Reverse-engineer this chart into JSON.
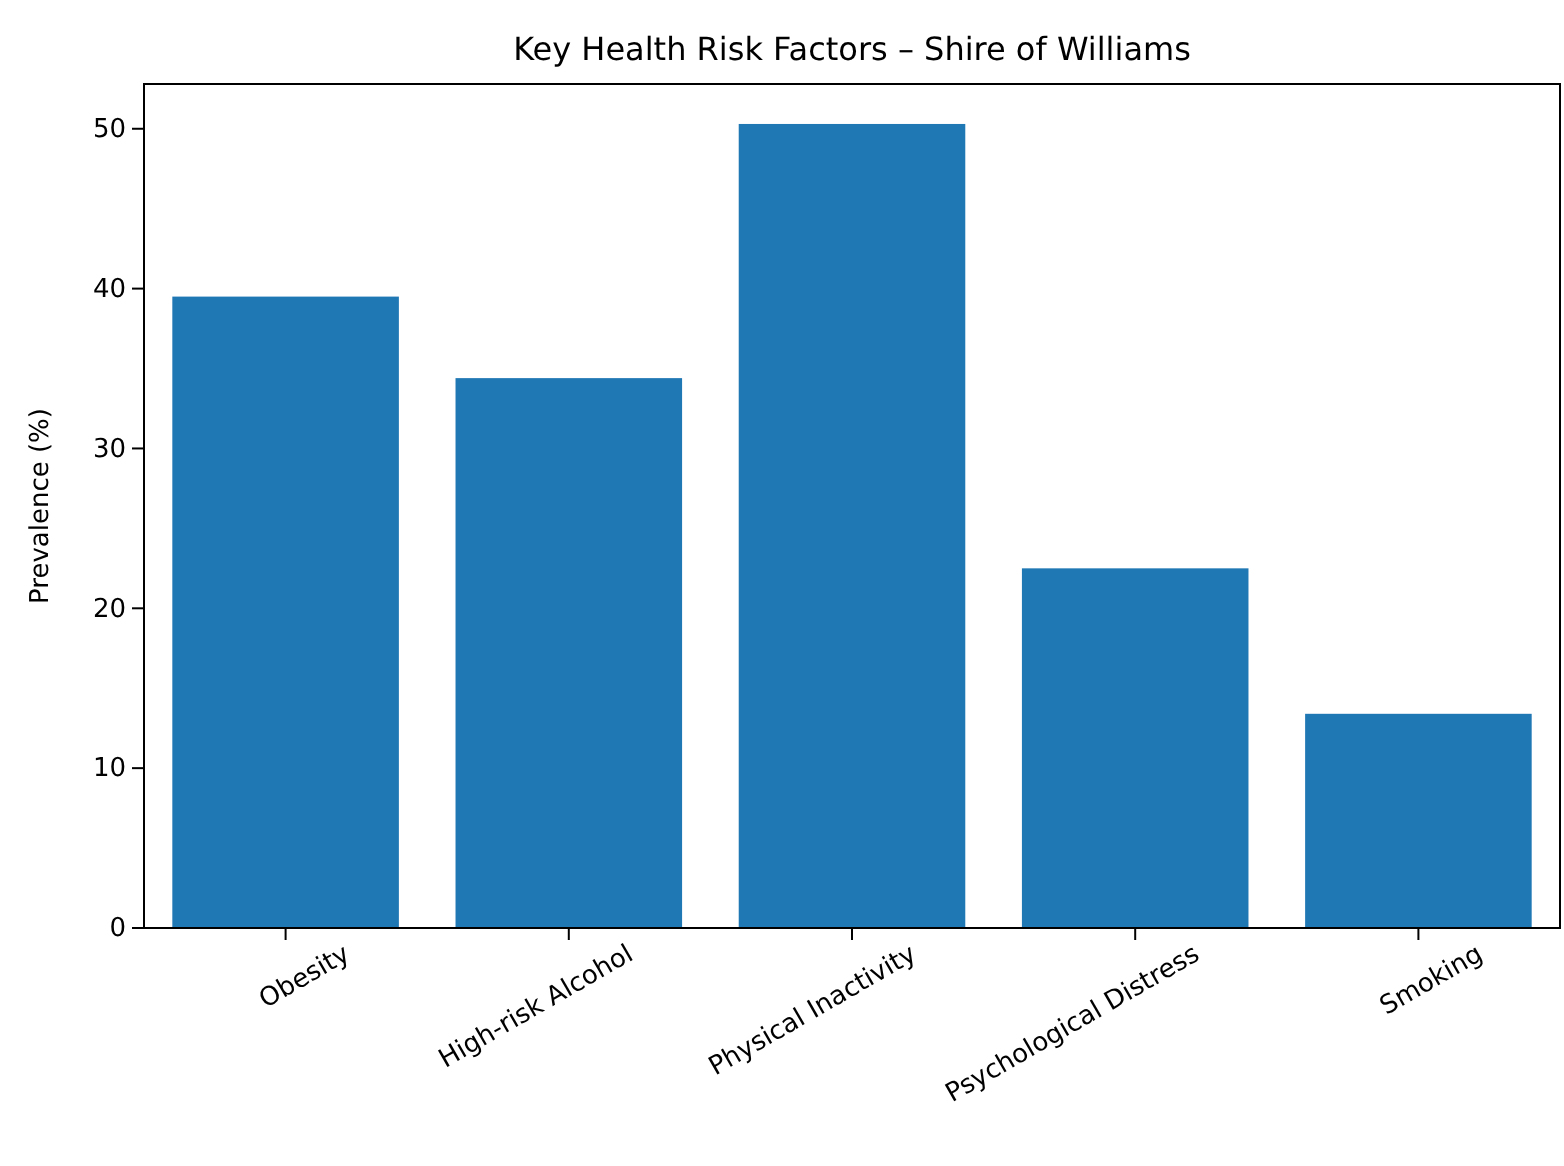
{
  "chart_data": {
    "type": "bar",
    "title": "Key Health Risk Factors – Shire of Williams",
    "ylabel": "Prevalence (%)",
    "categories": [
      "Obesity",
      "High-risk Alcohol",
      "Physical Inactivity",
      "Psychological Distress",
      "Smoking"
    ],
    "values": [
      39.5,
      34.4,
      50.3,
      22.5,
      13.4
    ],
    "color": "#1f77b4",
    "ylim": [
      0,
      52.8
    ],
    "yticks": [
      0,
      10,
      20,
      30,
      40,
      50
    ],
    "grid": false
  }
}
